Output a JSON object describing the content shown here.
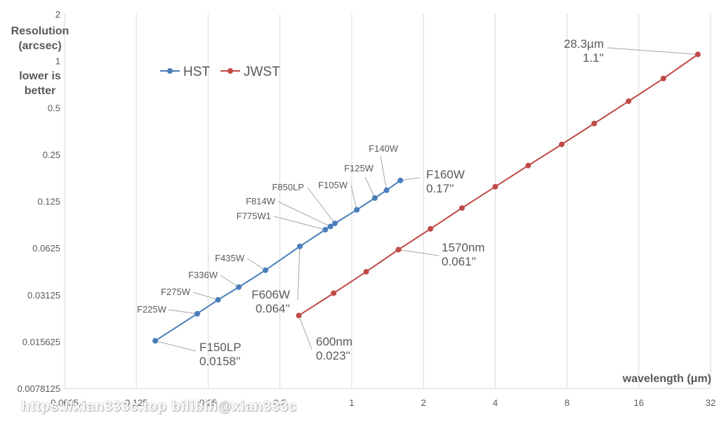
{
  "chart_data": {
    "type": "line",
    "x_scale": "log2",
    "y_scale": "log2",
    "xlim": [
      0.0625,
      32
    ],
    "ylim": [
      0.0078125,
      2
    ],
    "x_ticks": [
      "0.0625",
      "0.125",
      "0.25",
      "0.5",
      "1",
      "2",
      "4",
      "8",
      "16",
      "32"
    ],
    "y_ticks": [
      "0.0078125",
      "0.015625",
      "0.03125",
      "0.0625",
      "0.125",
      "0.25",
      "0.5",
      "1",
      "2"
    ],
    "xlabel": "wavelength (μm)",
    "ylabel_lines": [
      "Resolution",
      "(arcsec)",
      "lower is",
      "better"
    ],
    "grid": "vertical",
    "legend": "upper-left",
    "colors": {
      "HST": "#4a7ebb",
      "JWST": "#be4b48",
      "grid": "#d9d9d9",
      "text": "#595959",
      "leader": "#a6a6a6"
    },
    "series": [
      {
        "name": "HST",
        "x": [
          0.15,
          0.225,
          0.275,
          0.336,
          0.435,
          0.606,
          0.775,
          0.814,
          0.85,
          1.05,
          1.25,
          1.4,
          1.6
        ],
        "y": [
          0.0158,
          0.0236,
          0.029,
          0.035,
          0.045,
          0.064,
          0.082,
          0.086,
          0.09,
          0.11,
          0.131,
          0.147,
          0.17
        ],
        "labels": [
          "F150LP\n0.0158''",
          "F225W",
          "F275W",
          "F336W",
          "F435W",
          "F606W\n0.064''",
          "F775W1",
          "F814W",
          "F850LP",
          "F105W",
          "F125W",
          "F140W",
          "F160W\n0.17''"
        ]
      },
      {
        "name": "JWST",
        "x": [
          0.6,
          0.84,
          1.15,
          1.57,
          2.14,
          2.9,
          4.0,
          5.5,
          7.6,
          10.4,
          14.5,
          20.3,
          28.3
        ],
        "y": [
          0.023,
          0.032,
          0.044,
          0.061,
          0.083,
          0.113,
          0.155,
          0.212,
          0.29,
          0.395,
          0.55,
          0.77,
          1.1
        ],
        "labels": [
          "600nm\n0.023''",
          "",
          "",
          "1570nm\n0.061''",
          "",
          "",
          "",
          "",
          "",
          "",
          "",
          "",
          "28.3µm\n1.1''"
        ]
      }
    ]
  },
  "watermark": "https://xian333c.top bilibili@xian333c"
}
